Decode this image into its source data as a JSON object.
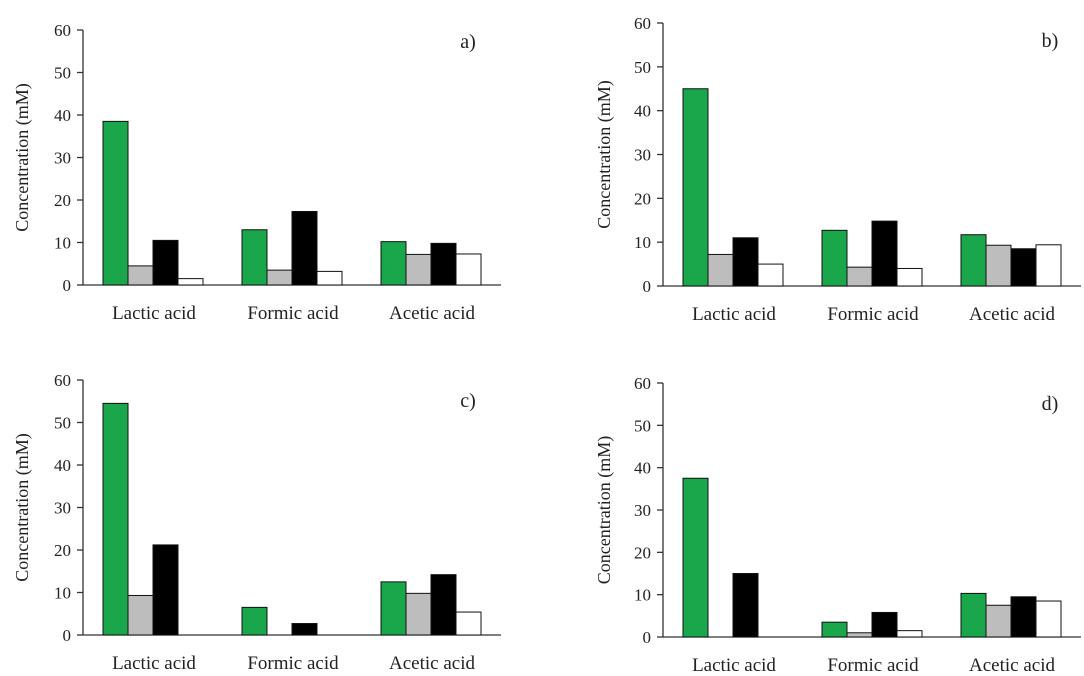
{
  "colors": {
    "series": [
      "#1aa64a",
      "#bdbdbd",
      "#000000",
      "#ffffff"
    ]
  },
  "chart_data": [
    {
      "type": "bar",
      "panel_label": "a)",
      "categories": [
        "Lactic acid",
        "Formic acid",
        "Acetic acid"
      ],
      "ylabel": "Concentration (mM)",
      "ylim": [
        0,
        60
      ],
      "yticks": [
        0,
        10,
        20,
        30,
        40,
        50,
        60
      ],
      "series": [
        {
          "values": [
            38.5,
            13.0,
            10.2
          ]
        },
        {
          "values": [
            4.5,
            3.5,
            7.2
          ]
        },
        {
          "values": [
            10.5,
            17.3,
            9.8
          ]
        },
        {
          "values": [
            1.5,
            3.2,
            7.3
          ]
        }
      ]
    },
    {
      "type": "bar",
      "panel_label": "b)",
      "categories": [
        "Lactic acid",
        "Formic acid",
        "Acetic acid"
      ],
      "ylabel": "Concentration (mM)",
      "ylim": [
        0,
        60
      ],
      "yticks": [
        0,
        10,
        20,
        30,
        40,
        50,
        60
      ],
      "series": [
        {
          "values": [
            45.0,
            12.7,
            11.7
          ]
        },
        {
          "values": [
            7.2,
            4.3,
            9.3
          ]
        },
        {
          "values": [
            11.0,
            14.8,
            8.5
          ]
        },
        {
          "values": [
            5.0,
            4.0,
            9.4
          ]
        }
      ]
    },
    {
      "type": "bar",
      "panel_label": "c)",
      "categories": [
        "Lactic acid",
        "Formic acid",
        "Acetic acid"
      ],
      "ylabel": "Concentration (mM)",
      "ylim": [
        0,
        60
      ],
      "yticks": [
        0,
        10,
        20,
        30,
        40,
        50,
        60
      ],
      "series": [
        {
          "values": [
            54.5,
            6.5,
            12.5
          ]
        },
        {
          "values": [
            9.3,
            0,
            9.8
          ]
        },
        {
          "values": [
            21.2,
            2.7,
            14.2
          ]
        },
        {
          "values": [
            0,
            0,
            5.4
          ]
        }
      ]
    },
    {
      "type": "bar",
      "panel_label": "d)",
      "categories": [
        "Lactic acid",
        "Formic acid",
        "Acetic acid"
      ],
      "ylabel": "Concentration (mM)",
      "ylim": [
        0,
        60
      ],
      "yticks": [
        0,
        10,
        20,
        30,
        40,
        50,
        60
      ],
      "series": [
        {
          "values": [
            37.5,
            3.5,
            10.3
          ]
        },
        {
          "values": [
            0,
            1.0,
            7.5
          ]
        },
        {
          "values": [
            15.0,
            5.8,
            9.5
          ]
        },
        {
          "values": [
            0,
            1.5,
            8.5
          ]
        }
      ]
    }
  ]
}
